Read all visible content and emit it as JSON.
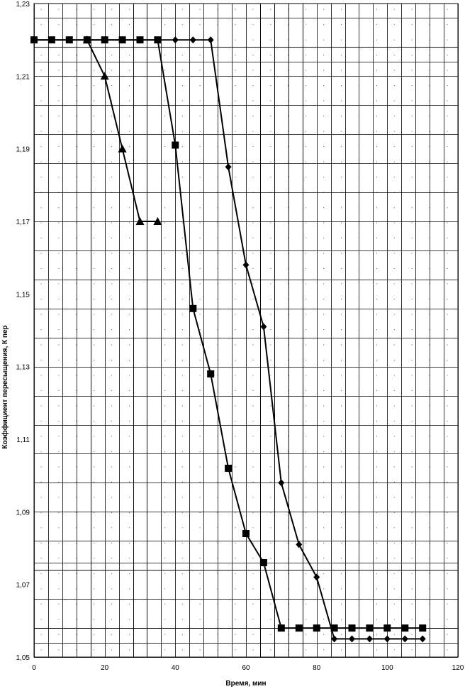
{
  "chart_data": {
    "type": "line",
    "title": "",
    "xlabel": "Время, мин",
    "ylabel": "Коэффициент пересыщения, К пер",
    "xlim": [
      0,
      120
    ],
    "ylim": [
      1.05,
      1.23
    ],
    "x_ticks": [
      {
        "value": 0,
        "label": "0"
      },
      {
        "value": 20,
        "label": "20"
      },
      {
        "value": 40,
        "label": "40"
      },
      {
        "value": 60,
        "label": "60"
      },
      {
        "value": 80,
        "label": "80"
      },
      {
        "value": 100,
        "label": "100"
      },
      {
        "value": 120,
        "label": "120"
      }
    ],
    "y_ticks": [
      {
        "value": 1.05,
        "label": "1,05"
      },
      {
        "value": 1.07,
        "label": "1,07"
      },
      {
        "value": 1.09,
        "label": "1,09"
      },
      {
        "value": 1.11,
        "label": "1,11"
      },
      {
        "value": 1.13,
        "label": "1,13"
      },
      {
        "value": 1.15,
        "label": "1,15"
      },
      {
        "value": 1.17,
        "label": "1,17"
      },
      {
        "value": 1.19,
        "label": "1,19"
      },
      {
        "value": 1.21,
        "label": "1,21"
      },
      {
        "value": 1.23,
        "label": "1,23"
      }
    ],
    "extra_vertical_gridlines": [
      16,
      28,
      32,
      64,
      68,
      72,
      76
    ],
    "extra_horizontal_gridlines": [
      1.054,
      1.058,
      1.074,
      1.076,
      1.214,
      1.218
    ],
    "grid": true,
    "legend": "none",
    "colors": {
      "line": "#000000",
      "grid": "#000000",
      "dots": "#555555",
      "background": "#ffffff"
    },
    "series": [
      {
        "marker": "diamond",
        "x": [
          0,
          5,
          10,
          15,
          20,
          25,
          30,
          35,
          40,
          45,
          50,
          55,
          60,
          65,
          70,
          75,
          80,
          85,
          90,
          95,
          100,
          105,
          110
        ],
        "y": [
          1.22,
          1.22,
          1.22,
          1.22,
          1.22,
          1.22,
          1.22,
          1.22,
          1.22,
          1.22,
          1.22,
          1.185,
          1.158,
          1.141,
          1.098,
          1.081,
          1.072,
          1.055,
          1.055,
          1.055,
          1.055,
          1.055,
          1.055
        ]
      },
      {
        "marker": "square",
        "x": [
          0,
          5,
          10,
          15,
          20,
          25,
          30,
          35,
          40,
          45,
          50,
          55,
          60,
          65,
          70,
          75,
          80,
          85,
          90,
          95,
          100,
          105,
          110
        ],
        "y": [
          1.22,
          1.22,
          1.22,
          1.22,
          1.22,
          1.22,
          1.22,
          1.22,
          1.191,
          1.146,
          1.128,
          1.102,
          1.084,
          1.076,
          1.058,
          1.058,
          1.058,
          1.058,
          1.058,
          1.058,
          1.058,
          1.058,
          1.058
        ]
      },
      {
        "marker": "triangle",
        "x": [
          15,
          20,
          25,
          30,
          35
        ],
        "y": [
          1.22,
          1.21,
          1.19,
          1.17,
          1.17
        ]
      }
    ]
  }
}
